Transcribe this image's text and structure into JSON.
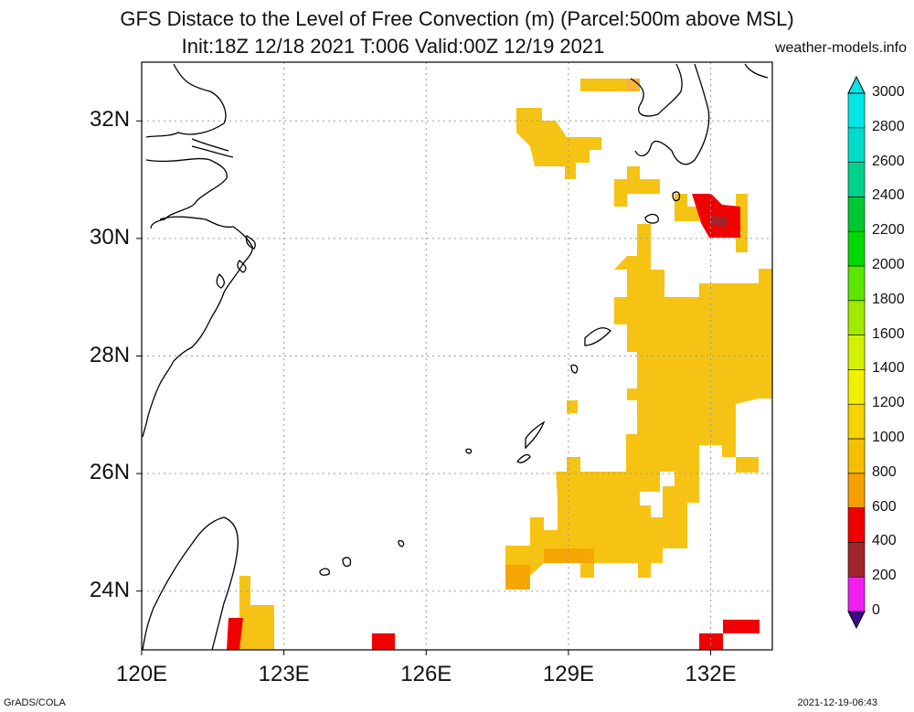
{
  "header": {
    "title_line1": "GFS Distace to the Level of Free Convection (m) (Parcel:500m above MSL)",
    "title_line2": "Init:18Z 12/18 2021 T:006 Valid:00Z 12/19 2021",
    "site": "weather-models.info"
  },
  "map": {
    "lon_range": [
      120,
      133.3
    ],
    "lat_range": [
      23,
      33
    ],
    "lat_labels": [
      {
        "lat": 32,
        "label": "32N"
      },
      {
        "lat": 30,
        "label": "30N"
      },
      {
        "lat": 28,
        "label": "28N"
      },
      {
        "lat": 26,
        "label": "26N"
      },
      {
        "lat": 24,
        "label": "24N"
      }
    ],
    "lon_labels": [
      {
        "lon": 120,
        "label": "120E"
      },
      {
        "lon": 123,
        "label": "123E"
      },
      {
        "lon": 126,
        "label": "126E"
      },
      {
        "lon": 129,
        "label": "129E"
      },
      {
        "lon": 132,
        "label": "132E"
      }
    ],
    "grid_lats": [
      24,
      26,
      28,
      30,
      32
    ],
    "grid_lons": [
      123,
      126,
      129,
      132
    ]
  },
  "colorbar": {
    "levels": [
      "0",
      "200",
      "400",
      "600",
      "800",
      "1000",
      "1200",
      "1400",
      "1600",
      "1800",
      "2000",
      "2200",
      "2400",
      "2600",
      "2800",
      "3000"
    ],
    "colors": [
      "#3c0a8c",
      "#f01ef0",
      "#a0262d",
      "#f00000",
      "#f5a000",
      "#f5be00",
      "#f5d200",
      "#f0f000",
      "#d2f000",
      "#a0ea00",
      "#5ae600",
      "#00d800",
      "#00c832",
      "#00d28c",
      "#00dcc8",
      "#00e6e6"
    ]
  },
  "footer": {
    "left": "GrADS/COLA",
    "right": "2021-12-19-06:43"
  }
}
